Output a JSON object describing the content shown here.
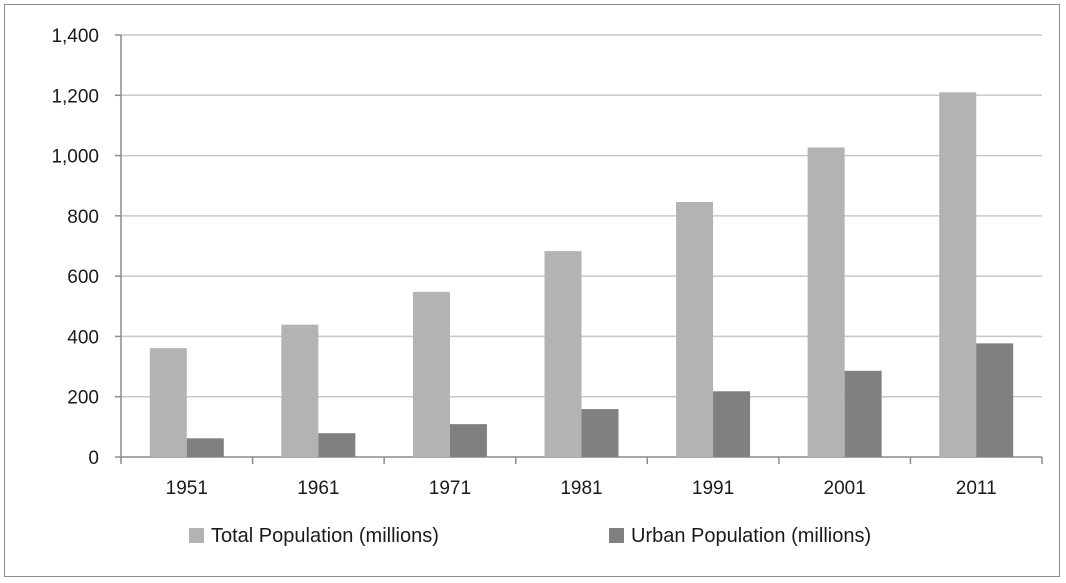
{
  "chart_data": {
    "type": "bar",
    "title": "",
    "xlabel": "",
    "ylabel": "",
    "categories": [
      "1951",
      "1961",
      "1971",
      "1981",
      "1991",
      "2001",
      "2011"
    ],
    "series": [
      {
        "name": "Total Population (millions)",
        "color": "#b3b3b3",
        "values": [
          361,
          439,
          548,
          683,
          846,
          1027,
          1210
        ]
      },
      {
        "name": "Urban Population (millions)",
        "color": "#808080",
        "values": [
          62,
          79,
          109,
          159,
          218,
          286,
          377
        ]
      }
    ],
    "ylim": [
      0,
      1400
    ],
    "yticks": [
      0,
      200,
      400,
      600,
      800,
      1000,
      1200,
      1400
    ],
    "ytick_labels": [
      "0",
      "200",
      "400",
      "600",
      "800",
      "1,000",
      "1,200",
      "1,400"
    ],
    "grid": true,
    "grid_color": "#c8c8c8",
    "legend_position": "bottom"
  }
}
